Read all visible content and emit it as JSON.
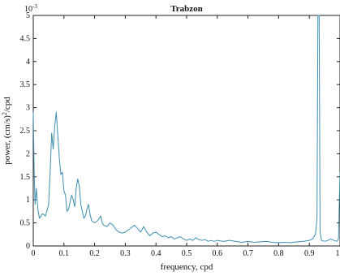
{
  "chart_data": {
    "type": "line",
    "title": "Trabzon",
    "xlabel": "frequency, cpd",
    "ylabel_parts": [
      "power, (cm/s)",
      "2",
      "/cpd"
    ],
    "y_multiplier_base": "10",
    "y_multiplier_exp": "-3",
    "xlim": [
      0,
      1
    ],
    "ylim": [
      0,
      5
    ],
    "x_ticks": [
      0,
      0.1,
      0.2,
      0.3,
      0.4,
      0.5,
      0.6,
      0.7,
      0.8,
      0.9,
      1
    ],
    "x_tick_labels": [
      "0",
      "0.1",
      "0.2",
      "0.3",
      "0.4",
      "0.5",
      "0.6",
      "0.7",
      "0.8",
      "0.9",
      "1"
    ],
    "y_ticks": [
      0,
      0.5,
      1,
      1.5,
      2,
      2.5,
      3,
      3.5,
      4,
      4.5,
      5
    ],
    "y_tick_labels": [
      "0",
      "0.5",
      "1",
      "1.5",
      "2",
      "2.5",
      "3",
      "3.5",
      "4",
      "4.5",
      "5"
    ],
    "grid": false,
    "line_color": "#3d8fb0",
    "series": [
      {
        "x": [
          0,
          0.003,
          0.006,
          0.01,
          0.015,
          0.02,
          0.03,
          0.04,
          0.05,
          0.055,
          0.06,
          0.065,
          0.07,
          0.075,
          0.08,
          0.085,
          0.09,
          0.095,
          0.1,
          0.105,
          0.11,
          0.115,
          0.12,
          0.125,
          0.13,
          0.135,
          0.14,
          0.145,
          0.15,
          0.155,
          0.16,
          0.165,
          0.17,
          0.175,
          0.18,
          0.185,
          0.19,
          0.2,
          0.21,
          0.215,
          0.22,
          0.225,
          0.23,
          0.24,
          0.25,
          0.26,
          0.27,
          0.28,
          0.29,
          0.3,
          0.31,
          0.32,
          0.33,
          0.34,
          0.35,
          0.36,
          0.37,
          0.38,
          0.39,
          0.4,
          0.41,
          0.42,
          0.43,
          0.44,
          0.45,
          0.46,
          0.47,
          0.48,
          0.49,
          0.5,
          0.51,
          0.52,
          0.53,
          0.54,
          0.55,
          0.56,
          0.57,
          0.58,
          0.59,
          0.6,
          0.62,
          0.64,
          0.66,
          0.68,
          0.7,
          0.72,
          0.74,
          0.76,
          0.78,
          0.8,
          0.82,
          0.84,
          0.86,
          0.88,
          0.9,
          0.91,
          0.92,
          0.925,
          0.928,
          0.93,
          0.932,
          0.935,
          0.94,
          0.95,
          0.96,
          0.97,
          0.98,
          0.99,
          0.995,
          1
        ],
        "y": [
          2.9,
          1.6,
          0.9,
          1.25,
          0.8,
          0.6,
          0.7,
          0.65,
          0.9,
          1.6,
          2.45,
          2.1,
          2.6,
          2.9,
          2.4,
          1.9,
          1.55,
          1.6,
          1.2,
          1.1,
          0.75,
          0.8,
          0.95,
          1.1,
          1.0,
          0.85,
          1.25,
          1.45,
          1.3,
          0.9,
          0.75,
          0.6,
          0.65,
          0.8,
          0.9,
          0.7,
          0.55,
          0.5,
          0.55,
          0.6,
          0.65,
          0.5,
          0.45,
          0.42,
          0.5,
          0.45,
          0.35,
          0.3,
          0.28,
          0.3,
          0.35,
          0.4,
          0.45,
          0.38,
          0.3,
          0.42,
          0.3,
          0.22,
          0.28,
          0.3,
          0.25,
          0.2,
          0.22,
          0.18,
          0.2,
          0.15,
          0.18,
          0.2,
          0.15,
          0.12,
          0.15,
          0.12,
          0.18,
          0.14,
          0.12,
          0.14,
          0.1,
          0.12,
          0.1,
          0.12,
          0.1,
          0.12,
          0.1,
          0.08,
          0.1,
          0.08,
          0.09,
          0.1,
          0.08,
          0.07,
          0.08,
          0.07,
          0.09,
          0.1,
          0.12,
          0.15,
          0.25,
          0.6,
          5,
          5,
          5,
          0.3,
          0.12,
          0.1,
          0.12,
          0.15,
          0.12,
          0.1,
          0.15,
          1.6
        ]
      }
    ]
  }
}
